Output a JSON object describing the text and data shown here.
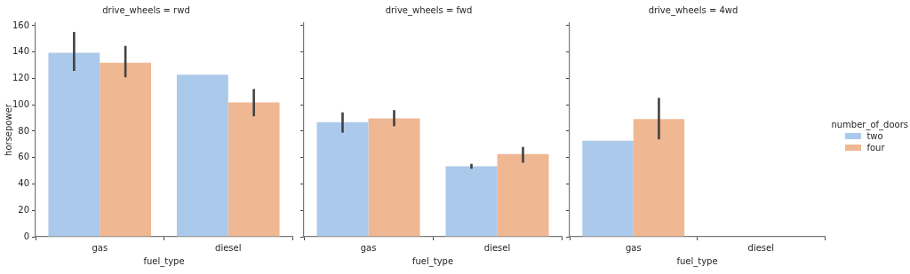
{
  "chart_data": [
    {
      "type": "bar",
      "title": "drive_wheels = rwd",
      "xlabel": "fuel_type",
      "ylabel": "horsepower",
      "categories": [
        "gas",
        "diesel"
      ],
      "ylim": [
        0,
        162
      ],
      "yticks": [
        0,
        20,
        40,
        60,
        80,
        100,
        120,
        140,
        160
      ],
      "grid": false,
      "legend": false,
      "series": [
        {
          "color": "#abc9ea",
          "values": [
            139.5,
            122.8
          ],
          "errors": [
            [
              125.7,
              155.3
            ],
            null
          ]
        },
        {
          "color": "#efb792",
          "values": [
            131.9,
            101.9
          ],
          "errors": [
            [
              120.9,
              144.7
            ],
            [
              91.3,
              112
            ]
          ]
        }
      ]
    },
    {
      "type": "bar",
      "title": "drive_wheels = fwd",
      "xlabel": "fuel_type",
      "categories": [
        "gas",
        "diesel"
      ],
      "ylim": [
        0,
        162
      ],
      "yticks": [
        0,
        20,
        40,
        60,
        80,
        100,
        120,
        140,
        160
      ],
      "tick_labels": "x",
      "grid": false,
      "legend": false,
      "series": [
        {
          "color": "#abc9ea",
          "values": [
            86.9,
            53.4
          ],
          "errors": [
            [
              78.9,
              94.3
            ],
            [
              51.5,
              55.3
            ]
          ]
        },
        {
          "color": "#efb792",
          "values": [
            89.7,
            62.7
          ],
          "errors": [
            [
              83.8,
              96
            ],
            [
              56.1,
              68.1
            ]
          ]
        }
      ]
    },
    {
      "type": "bar",
      "title": "drive_wheels = 4wd",
      "xlabel": "fuel_type",
      "categories": [
        "gas",
        "diesel"
      ],
      "ylim": [
        0,
        162
      ],
      "yticks": [
        0,
        20,
        40,
        60,
        80,
        100,
        120,
        140,
        160
      ],
      "tick_labels": "x",
      "grid": false,
      "legend": "right",
      "legend_title": "number_of_doors",
      "series": [
        {
          "name": "two",
          "color": "#abc9ea",
          "values": [
            72.8,
            null
          ],
          "errors": [
            null,
            null
          ]
        },
        {
          "name": "four",
          "color": "#efb792",
          "values": [
            89.2,
            null
          ],
          "errors": [
            [
              73.8,
              105.3
            ],
            null
          ]
        }
      ]
    }
  ]
}
